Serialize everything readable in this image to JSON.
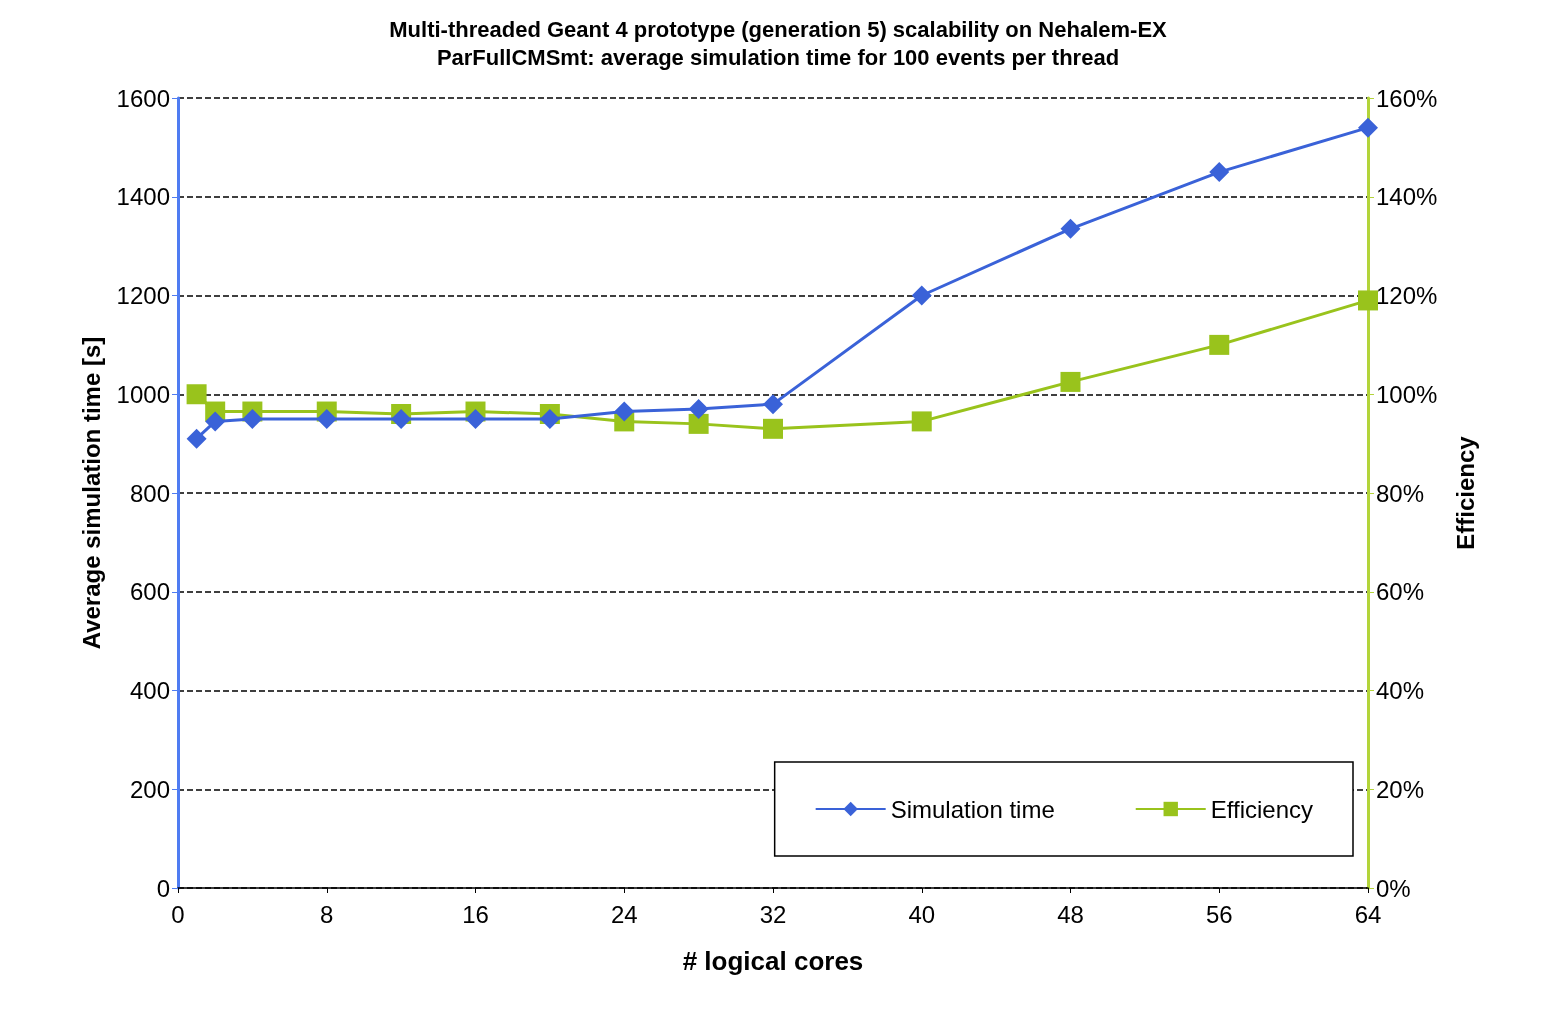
{
  "chart_data": {
    "type": "line",
    "title": "Multi-threaded Geant 4 prototype (generation 5) scalability on Nehalem-EX",
    "subtitle": "ParFullCMSmt: average simulation time for 100 events per thread",
    "xlabel": "# logical cores",
    "ylabel": "Average simulation time [s]",
    "y2label": "Efficiency",
    "x": [
      1,
      2,
      4,
      8,
      12,
      16,
      20,
      24,
      28,
      32,
      40,
      48,
      56,
      64
    ],
    "series": [
      {
        "name": "Simulation time",
        "color": "#3a62d8",
        "marker": "diamond",
        "values": [
          910,
          945,
          950,
          950,
          950,
          950,
          950,
          965,
          970,
          980,
          1200,
          1335,
          1450,
          1540
        ]
      },
      {
        "name": "Efficiency",
        "color": "#99c31c",
        "marker": "square",
        "axis": "y2",
        "values": [
          100,
          96.5,
          96.5,
          96.5,
          96,
          96.5,
          96,
          94.5,
          94,
          93,
          94.5,
          102.5,
          110,
          119
        ]
      }
    ],
    "xlim": [
      0,
      64
    ],
    "xticks": [
      0,
      8,
      16,
      24,
      32,
      40,
      48,
      56,
      64
    ],
    "ylim": [
      0,
      1600
    ],
    "yticks": [
      0,
      200,
      400,
      600,
      800,
      1000,
      1200,
      1400,
      1600
    ],
    "y2lim": [
      0,
      160
    ],
    "y2ticks": [
      {
        "value": 0,
        "label": "0%"
      },
      {
        "value": 20,
        "label": "20%"
      },
      {
        "value": 40,
        "label": "40%"
      },
      {
        "value": 60,
        "label": "60%"
      },
      {
        "value": 80,
        "label": "80%"
      },
      {
        "value": 100,
        "label": "100%"
      },
      {
        "value": 120,
        "label": "120%"
      },
      {
        "value": 140,
        "label": "140%"
      },
      {
        "value": 160,
        "label": "160%"
      }
    ],
    "grid": "y",
    "legend": "bottom right",
    "line_style": "solid"
  }
}
